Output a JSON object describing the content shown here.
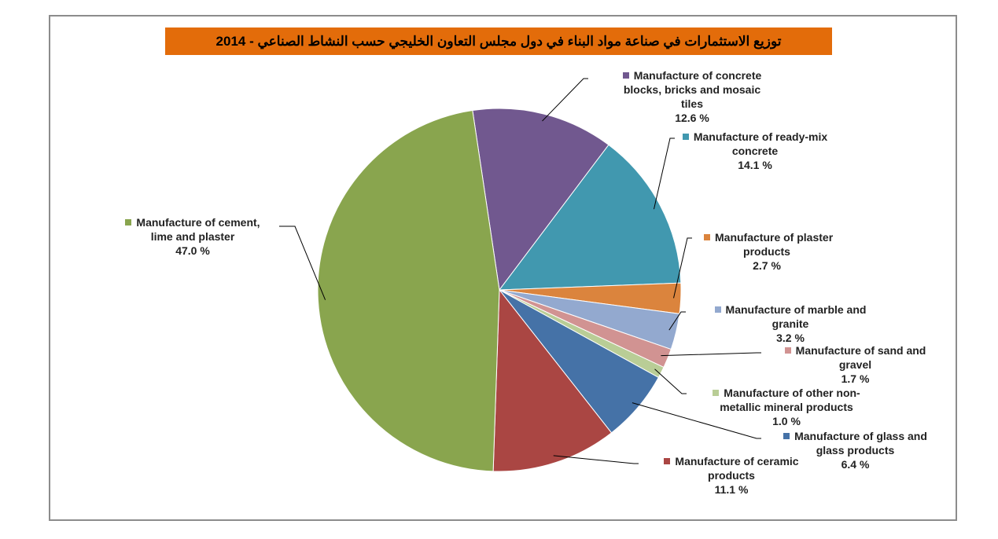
{
  "chart_data": {
    "type": "pie",
    "title": "توزيع الاستثمارات في صناعة مواد البناء في دول مجلس التعاون الخليجي حسب النشاط الصناعي - 2014",
    "unit": "%",
    "slices": [
      {
        "label_lines": [
          "Manufacture of concrete",
          "blocks, bricks and mosaic",
          "tiles"
        ],
        "value": 12.6,
        "value_label": "12.6 %",
        "color": "#71588f"
      },
      {
        "label_lines": [
          "Manufacture of ready-mix",
          "concrete"
        ],
        "value": 14.1,
        "value_label": "14.1 %",
        "color": "#4198af"
      },
      {
        "label_lines": [
          "Manufacture of plaster",
          "products"
        ],
        "value": 2.7,
        "value_label": "2.7 %",
        "color": "#db843d"
      },
      {
        "label_lines": [
          "Manufacture of marble and",
          "granite"
        ],
        "value": 3.2,
        "value_label": "3.2 %",
        "color": "#93a9cf"
      },
      {
        "label_lines": [
          "Manufacture of sand and",
          "gravel"
        ],
        "value": 1.7,
        "value_label": "1.7 %",
        "color": "#d19392"
      },
      {
        "label_lines": [
          "Manufacture of other non-",
          "metallic mineral products"
        ],
        "value": 1.0,
        "value_label": "1.0 %",
        "color": "#b9cd96"
      },
      {
        "label_lines": [
          "Manufacture of glass and",
          "glass products"
        ],
        "value": 6.4,
        "value_label": "6.4 %",
        "color": "#4572a7"
      },
      {
        "label_lines": [
          "Manufacture of ceramic",
          "products"
        ],
        "value": 11.1,
        "value_label": "11.1 %",
        "color": "#aa4643"
      },
      {
        "label_lines": [
          "Manufacture of cement,",
          "lime and plaster"
        ],
        "value": 47.0,
        "value_label": "47.0 %",
        "color": "#89a54e"
      }
    ]
  }
}
